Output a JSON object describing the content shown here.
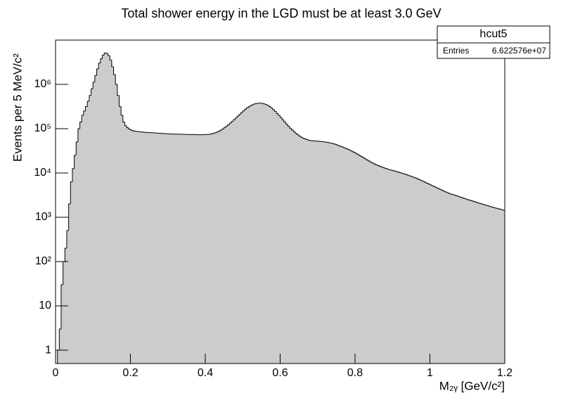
{
  "chart_data": {
    "type": "histogram",
    "title": "Total shower energy in the LGD must be at least 3.0 GeV",
    "x_label": "M₂ᵧ [GeV/c²]",
    "y_label": "Events per 5 MeV/c²",
    "color": "#cccccc",
    "line_color": "#000000",
    "ylog": true,
    "grid": false,
    "xlim": [
      0,
      1.2
    ],
    "ylim": [
      0.5,
      10000000
    ],
    "xticks": [
      0,
      0.2,
      0.4,
      0.6,
      0.8,
      1,
      1.2
    ],
    "yticks": [
      1,
      10,
      {
        "value": 100,
        "label": "10²"
      },
      {
        "value": 1000,
        "label": "10³"
      },
      {
        "value": 10000,
        "label": "10⁴"
      },
      {
        "value": 100000,
        "label": "10⁵"
      },
      {
        "value": 1000000,
        "label": "10⁶"
      }
    ],
    "stats": {
      "name": "hcut5",
      "entries_label": "Entries",
      "entries": "6.622576e+07"
    },
    "bins": [
      0,
      0.005,
      0.01,
      0.015,
      0.02,
      0.025,
      0.03,
      0.035,
      0.04,
      0.045,
      0.05,
      0.055,
      0.06,
      0.065,
      0.07,
      0.075,
      0.08,
      0.085,
      0.09,
      0.095,
      0.1,
      0.105,
      0.11,
      0.115,
      0.12,
      0.125,
      0.13,
      0.135,
      0.14,
      0.145,
      0.15,
      0.155,
      0.16,
      0.165,
      0.17,
      0.175,
      0.18,
      0.185,
      0.19,
      0.195,
      0.2,
      0.205,
      0.21,
      0.215,
      0.22,
      0.225,
      0.23,
      0.235,
      0.24,
      0.245,
      0.25,
      0.255,
      0.26,
      0.265,
      0.27,
      0.275,
      0.28,
      0.285,
      0.29,
      0.295,
      0.3,
      0.305,
      0.31,
      0.315,
      0.32,
      0.325,
      0.33,
      0.335,
      0.34,
      0.345,
      0.35,
      0.355,
      0.36,
      0.365,
      0.37,
      0.375,
      0.38,
      0.385,
      0.39,
      0.395,
      0.4,
      0.405,
      0.41,
      0.415,
      0.42,
      0.425,
      0.43,
      0.435,
      0.44,
      0.445,
      0.45,
      0.455,
      0.46,
      0.465,
      0.47,
      0.475,
      0.48,
      0.485,
      0.49,
      0.495,
      0.5,
      0.505,
      0.51,
      0.515,
      0.52,
      0.525,
      0.53,
      0.535,
      0.54,
      0.545,
      0.55,
      0.555,
      0.56,
      0.565,
      0.57,
      0.575,
      0.58,
      0.585,
      0.59,
      0.595,
      0.6,
      0.605,
      0.61,
      0.615,
      0.62,
      0.625,
      0.63,
      0.635,
      0.64,
      0.645,
      0.65,
      0.655,
      0.66,
      0.665,
      0.67,
      0.675,
      0.68,
      0.685,
      0.69,
      0.695,
      0.7,
      0.705,
      0.71,
      0.715,
      0.72,
      0.725,
      0.73,
      0.735,
      0.74,
      0.745,
      0.75,
      0.755,
      0.76,
      0.765,
      0.77,
      0.775,
      0.78,
      0.785,
      0.79,
      0.795,
      0.8,
      0.805,
      0.81,
      0.815,
      0.82,
      0.825,
      0.83,
      0.835,
      0.84,
      0.845,
      0.85,
      0.855,
      0.86,
      0.865,
      0.87,
      0.875,
      0.88,
      0.885,
      0.89,
      0.895,
      0.9,
      0.905,
      0.91,
      0.915,
      0.92,
      0.925,
      0.93,
      0.935,
      0.94,
      0.945,
      0.95,
      0.955,
      0.96,
      0.965,
      0.97,
      0.975,
      0.98,
      0.985,
      0.99,
      0.995,
      1,
      1.005,
      1.01,
      1.015,
      1.02,
      1.025,
      1.03,
      1.035,
      1.04,
      1.045,
      1.05,
      1.055,
      1.06,
      1.065,
      1.07,
      1.075,
      1.08,
      1.085,
      1.09,
      1.095,
      1.1,
      1.105,
      1.11,
      1.115,
      1.12,
      1.125,
      1.13,
      1.135,
      1.14,
      1.145,
      1.15,
      1.155,
      1.16,
      1.165,
      1.17,
      1.175,
      1.18,
      1.185,
      1.19,
      1.195,
      1.2
    ],
    "values": [
      0,
      1,
      3,
      30,
      100,
      200,
      500,
      2000,
      6300,
      12600,
      25000,
      50000,
      100000,
      141000,
      200000,
      251000,
      316000,
      417000,
      562000,
      794000,
      1120000,
      1580000,
      2240000,
      3020000,
      3800000,
      4570000,
      5130000,
      5010000,
      4470000,
      3550000,
      2510000,
      1660000,
      1000000,
      562000,
      316000,
      200000,
      141000,
      117000,
      105000,
      98000,
      93000,
      90000,
      88000,
      87000,
      86000,
      85000,
      84000,
      83000,
      82500,
      82000,
      81500,
      81000,
      80500,
      80000,
      79500,
      79000,
      78500,
      78000,
      77500,
      77000,
      76500,
      76000,
      75800,
      75600,
      75400,
      75200,
      75000,
      74800,
      74600,
      74400,
      74200,
      74000,
      73800,
      73600,
      73400,
      73200,
      73000,
      73000,
      73000,
      73200,
      73500,
      74000,
      75000,
      76500,
      78500,
      81000,
      84000,
      88000,
      93000,
      99000,
      106000,
      114000,
      123000,
      134000,
      146000,
      160000,
      175000,
      192000,
      211000,
      231000,
      252000,
      274000,
      295000,
      315000,
      333000,
      349000,
      362000,
      371000,
      376000,
      377000,
      373000,
      365000,
      352000,
      336000,
      316000,
      294000,
      270000,
      246000,
      222000,
      199000,
      178000,
      159000,
      142000,
      127000,
      114000,
      103000,
      94000,
      86000,
      79000,
      73000,
      68000,
      64000,
      61000,
      58500,
      56500,
      55000,
      54000,
      53500,
      53000,
      52500,
      52000,
      51500,
      51000,
      50500,
      50000,
      49000,
      48000,
      47000,
      46000,
      44500,
      43000,
      41500,
      40000,
      38500,
      37000,
      35500,
      34000,
      32500,
      31000,
      29500,
      28000,
      26500,
      25000,
      23600,
      22300,
      21000,
      19800,
      18700,
      17700,
      16800,
      16000,
      15300,
      14700,
      14100,
      13600,
      13100,
      12700,
      12300,
      11900,
      11600,
      11300,
      11000,
      10700,
      10400,
      10100,
      9800,
      9500,
      9200,
      8900,
      8600,
      8300,
      8000,
      7700,
      7400,
      7100,
      6800,
      6500,
      6200,
      5900,
      5650,
      5400,
      5150,
      4900,
      4700,
      4500,
      4300,
      4100,
      3900,
      3750,
      3600,
      3450,
      3350,
      3250,
      3150,
      3050,
      2950,
      2850,
      2760,
      2670,
      2580,
      2500,
      2430,
      2360,
      2290,
      2220,
      2150,
      2080,
      2020,
      1960,
      1900,
      1850,
      1800,
      1750,
      1700,
      1650,
      1610,
      1570,
      1530,
      1490,
      1450
    ]
  }
}
